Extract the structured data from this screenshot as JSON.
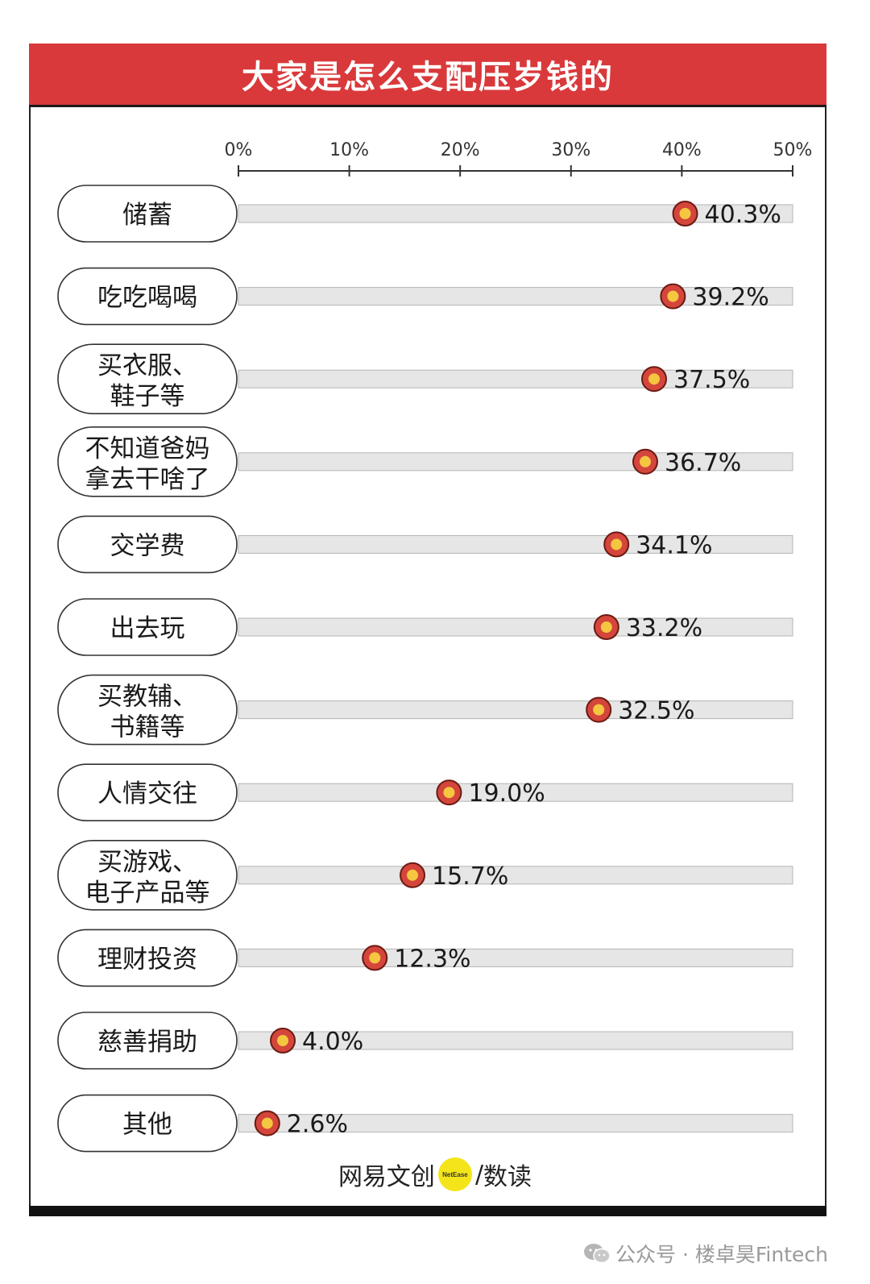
{
  "header": {
    "title": "大家是怎么支配压岁钱的"
  },
  "colors": {
    "header_bg": "#d9393b",
    "marker_outer": "#d4463b",
    "marker_inner": "#f5c640",
    "track": "#e6e6e6"
  },
  "chart_data": {
    "type": "dot",
    "title": "大家是怎么支配压岁钱的",
    "xlim": [
      0,
      50
    ],
    "xticks": [
      "0%",
      "10%",
      "20%",
      "30%",
      "40%",
      "50%"
    ],
    "xtick_values": [
      0,
      10,
      20,
      30,
      40,
      50
    ],
    "categories": [
      [
        "储蓄"
      ],
      [
        "吃吃喝喝"
      ],
      [
        "买衣服、",
        "鞋子等"
      ],
      [
        "不知道爸妈",
        "拿去干啥了"
      ],
      [
        "交学费"
      ],
      [
        "出去玩"
      ],
      [
        "买教辅、",
        "书籍等"
      ],
      [
        "人情交往"
      ],
      [
        "买游戏、",
        "电子产品等"
      ],
      [
        "理财投资"
      ],
      [
        "慈善捐助"
      ],
      [
        "其他"
      ]
    ],
    "values": [
      40.3,
      39.2,
      37.5,
      36.7,
      34.1,
      33.2,
      32.5,
      19.0,
      15.7,
      12.3,
      4.0,
      2.6
    ],
    "value_labels": [
      "40.3%",
      "39.2%",
      "37.5%",
      "36.7%",
      "34.1%",
      "33.2%",
      "32.5%",
      "19.0%",
      "15.7%",
      "12.3%",
      "4.0%",
      "2.6%"
    ],
    "grid": false
  },
  "footer": {
    "brand_left": "网易文创",
    "brand_dot": "NetEase",
    "separator": "/",
    "brand_right": "数读"
  },
  "watermark": {
    "text": "公众号 · 楼卓昊Fintech",
    "icon": "wechat-icon"
  }
}
